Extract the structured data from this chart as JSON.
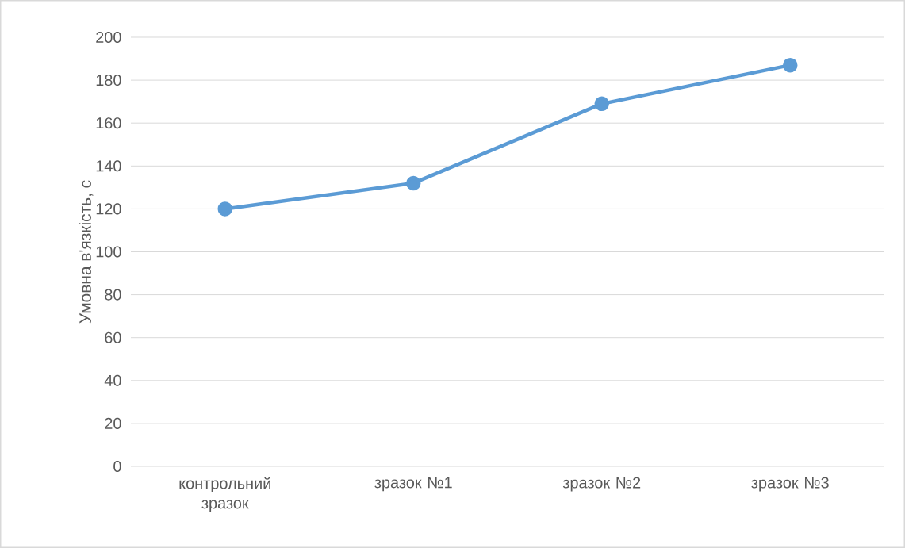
{
  "chart_data": {
    "type": "line",
    "categories": [
      "контрольний зразок",
      "зразок №1",
      "зразок №2",
      "зразок №3"
    ],
    "values": [
      120,
      132,
      169,
      187
    ],
    "color": "#5b9bd5",
    "ylabel": "Умовна в'язкість, с",
    "ylim": [
      0,
      200
    ],
    "yticks": [
      0,
      20,
      40,
      60,
      80,
      100,
      120,
      140,
      160,
      180,
      200
    ],
    "grid": "y",
    "marker": "circle",
    "line_style": "solid"
  }
}
